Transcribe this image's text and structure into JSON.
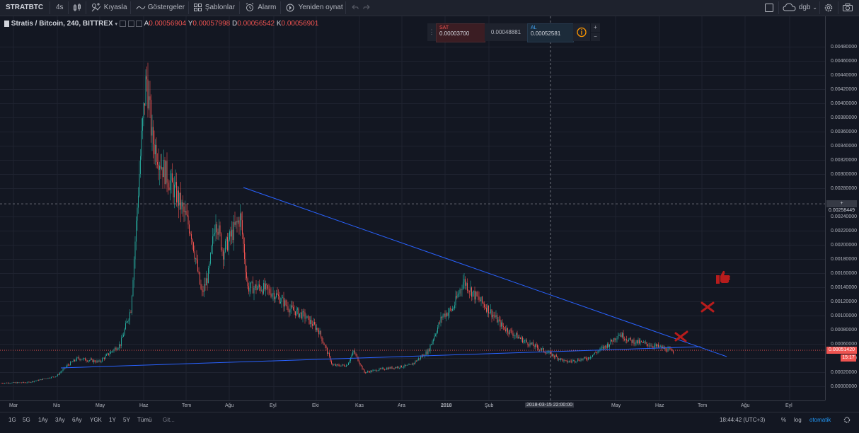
{
  "toolbar": {
    "symbol": "STRATBTC",
    "interval": "4s",
    "compare_label": "Kıyasla",
    "indicators_label": "Göstergeler",
    "templates_label": "Şablonlar",
    "alarm_label": "Alarm",
    "replay_label": "Yeniden oynat",
    "layout_name": "dgb"
  },
  "legend": {
    "title": "Stratis / Bitcoin, 240, BITTREX",
    "open_key": "A",
    "open_val": "0.00056904",
    "high_key": "Y",
    "high_val": "0.00057998",
    "low_key": "D",
    "low_val": "0.00056542",
    "close_key": "K",
    "close_val": "0.00056901"
  },
  "trade": {
    "sell_label": "SAT",
    "sell_price": "0.00003700",
    "spread": "0.00048881",
    "buy_label": "AL",
    "buy_price": "0.00052581",
    "plus": "+",
    "minus": "−"
  },
  "price_axis": {
    "ticks": [
      "0.00480000",
      "0.00460000",
      "0.00440000",
      "0.00420000",
      "0.00400000",
      "0.00380000",
      "0.00360000",
      "0.00340000",
      "0.00320000",
      "0.00300000",
      "0.00280000",
      "0.00240000",
      "0.00220000",
      "0.00200000",
      "0.00180000",
      "0.00160000",
      "0.00140000",
      "0.00120000",
      "0.00100000",
      "0.00080000",
      "0.00060000",
      "0.00020000",
      "0.00000000"
    ],
    "tick_values": [
      0.0048,
      0.0046,
      0.0044,
      0.0042,
      0.004,
      0.0038,
      0.0036,
      0.0034,
      0.0032,
      0.003,
      0.0028,
      0.0024,
      0.0022,
      0.002,
      0.0018,
      0.0016,
      0.0014,
      0.0012,
      0.001,
      0.0008,
      0.0006,
      0.0002,
      0.0
    ],
    "partial_tick": "0.000",
    "partial_tick_value": 0.0004,
    "crosshair_label": "0.00258449",
    "crosshair_value": 0.00258449,
    "last_price": "0.00051420",
    "last_value": 0.0005142,
    "countdown": "15:17"
  },
  "time_axis": {
    "labels": [
      "Mar",
      "Nis",
      "May",
      "Haz",
      "Tem",
      "Ağu",
      "Eyl",
      "Eki",
      "Kas",
      "Ara",
      "2018",
      "Şub",
      "Haz",
      "Tem",
      "Ağu",
      "Eyl",
      "May"
    ],
    "crosshair_time": "2018-03-15 22:00:00"
  },
  "bottom_bar": {
    "ranges": [
      "1G",
      "5G",
      "1Ay",
      "3Ay",
      "6Ay",
      "YGK",
      "1Y",
      "5Y",
      "Tümü"
    ],
    "goto_label": "Git...",
    "clock": "18:44:42 (UTC+3)",
    "percent_label": "%",
    "log_label": "log",
    "auto_label": "otomatik"
  },
  "colors": {
    "background": "#131722",
    "up": "#26a69a",
    "down": "#ef5350",
    "trendline": "#2962ff",
    "annotation": "#b71c1c",
    "auto_active": "#2196f3"
  }
}
